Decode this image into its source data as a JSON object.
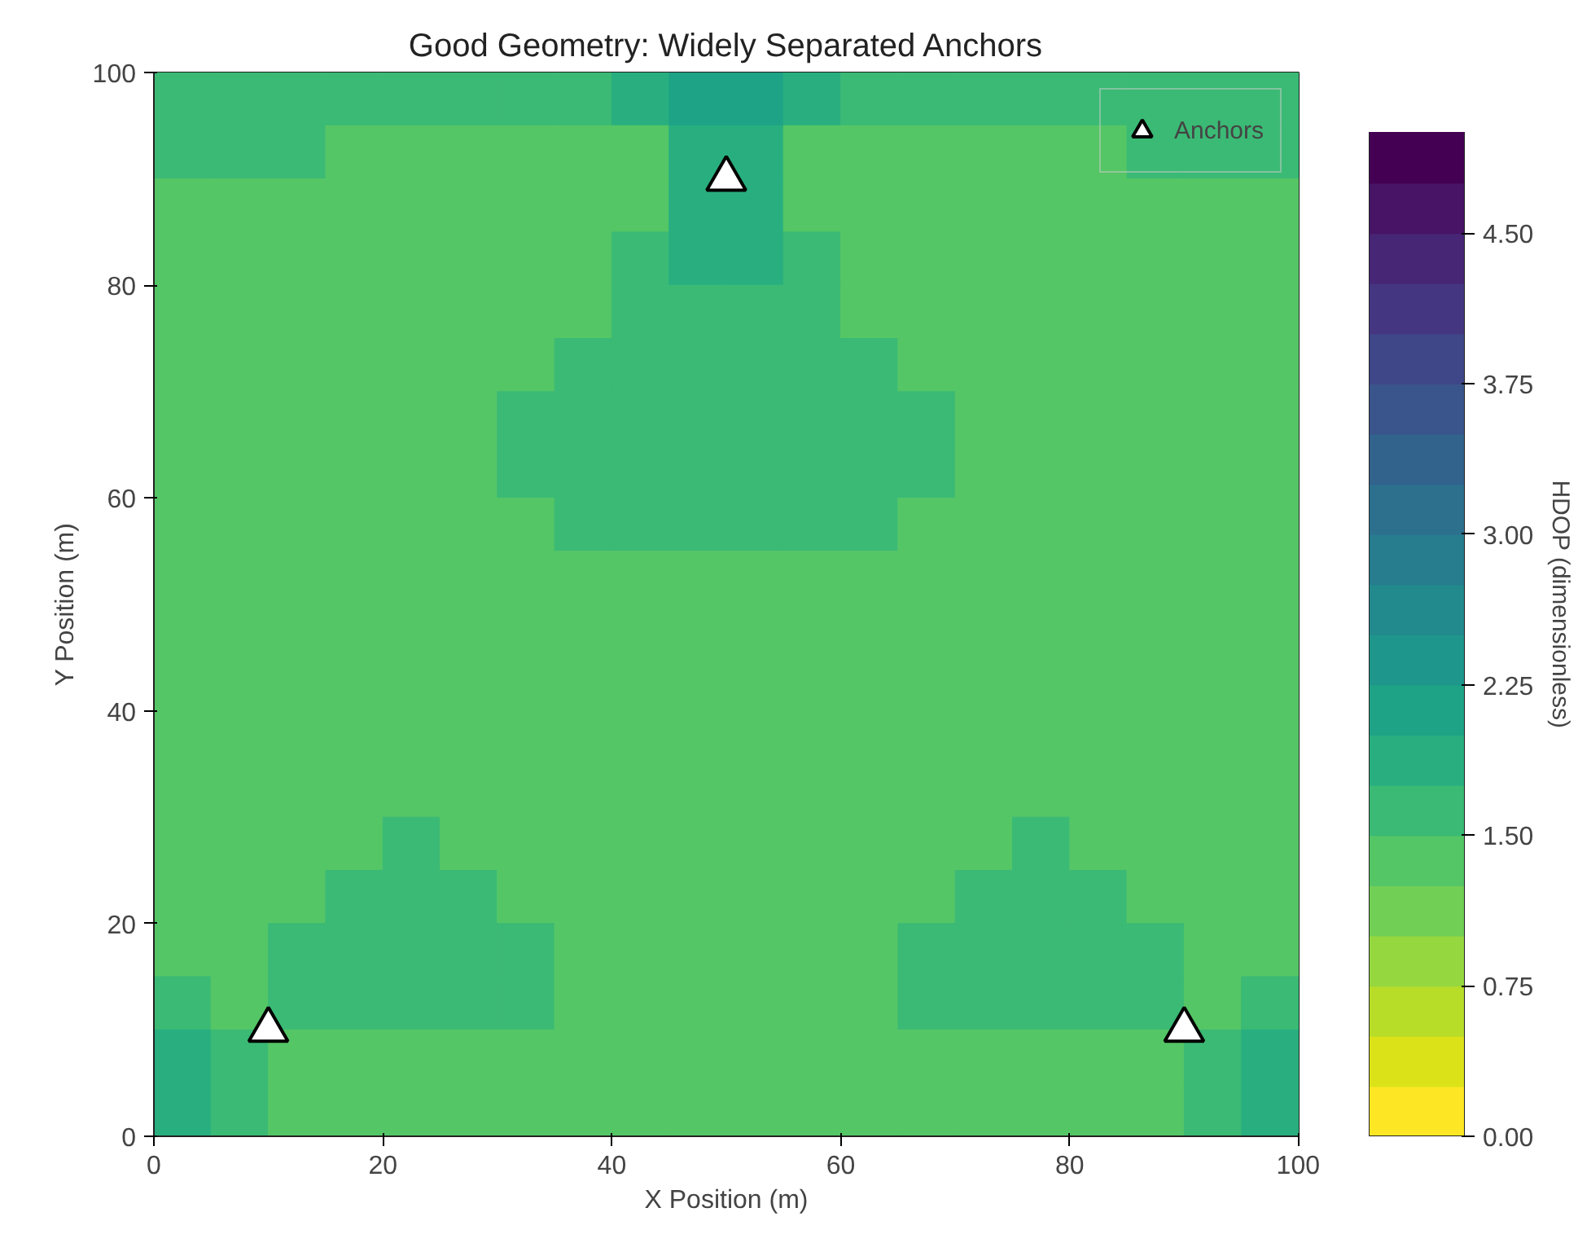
{
  "chart_data": {
    "type": "heatmap",
    "title": "Good Geometry: Widely Separated Anchors",
    "xlabel": "X Position (m)",
    "ylabel": "Y Position (m)",
    "clabel": "HDOP (dimensionless)",
    "xlim": [
      0,
      100
    ],
    "ylim": [
      0,
      100
    ],
    "xticks": [
      0,
      20,
      40,
      60,
      80,
      100
    ],
    "yticks": [
      0,
      20,
      40,
      60,
      80,
      100
    ],
    "clim": [
      0,
      5
    ],
    "cticks": [
      {
        "value": 0,
        "label": "0.00"
      },
      {
        "value": 0.75,
        "label": "0.75"
      },
      {
        "value": 1.5,
        "label": "1.50"
      },
      {
        "value": 2.25,
        "label": "2.25"
      },
      {
        "value": 3,
        "label": "3.00"
      },
      {
        "value": 3.75,
        "label": "3.75"
      },
      {
        "value": 4.5,
        "label": "4.50"
      }
    ],
    "legend": "top right",
    "cells": [
      [
        1.6,
        1.6,
        1.6,
        1.6,
        1.6,
        1.6,
        1.6,
        1.6,
        1.9,
        2.1,
        2.1,
        1.9,
        1.6,
        1.6,
        1.6,
        1.6,
        1.6,
        1.6,
        1.6,
        1.6
      ],
      [
        1.6,
        1.6,
        1.6,
        1.4,
        1.4,
        1.4,
        1.4,
        1.4,
        1.4,
        1.9,
        1.9,
        1.4,
        1.4,
        1.4,
        1.4,
        1.4,
        1.4,
        1.6,
        1.6,
        1.6
      ],
      [
        1.4,
        1.4,
        1.4,
        1.4,
        1.4,
        1.4,
        1.4,
        1.4,
        1.4,
        1.9,
        1.9,
        1.4,
        1.4,
        1.4,
        1.4,
        1.4,
        1.4,
        1.4,
        1.4,
        1.4
      ],
      [
        1.4,
        1.4,
        1.4,
        1.4,
        1.4,
        1.4,
        1.4,
        1.4,
        1.6,
        1.9,
        1.9,
        1.6,
        1.4,
        1.4,
        1.4,
        1.4,
        1.4,
        1.4,
        1.4,
        1.4
      ],
      [
        1.4,
        1.4,
        1.4,
        1.4,
        1.4,
        1.4,
        1.4,
        1.4,
        1.6,
        1.6,
        1.6,
        1.6,
        1.4,
        1.4,
        1.4,
        1.4,
        1.4,
        1.4,
        1.4,
        1.4
      ],
      [
        1.4,
        1.4,
        1.4,
        1.4,
        1.4,
        1.4,
        1.4,
        1.6,
        1.6,
        1.6,
        1.6,
        1.6,
        1.6,
        1.4,
        1.4,
        1.4,
        1.4,
        1.4,
        1.4,
        1.4
      ],
      [
        1.4,
        1.4,
        1.4,
        1.4,
        1.4,
        1.4,
        1.6,
        1.6,
        1.6,
        1.6,
        1.6,
        1.6,
        1.6,
        1.6,
        1.4,
        1.4,
        1.4,
        1.4,
        1.4,
        1.4
      ],
      [
        1.4,
        1.4,
        1.4,
        1.4,
        1.4,
        1.4,
        1.6,
        1.6,
        1.6,
        1.6,
        1.6,
        1.6,
        1.6,
        1.6,
        1.4,
        1.4,
        1.4,
        1.4,
        1.4,
        1.4
      ],
      [
        1.4,
        1.4,
        1.4,
        1.4,
        1.4,
        1.4,
        1.4,
        1.6,
        1.6,
        1.6,
        1.6,
        1.6,
        1.6,
        1.4,
        1.4,
        1.4,
        1.4,
        1.4,
        1.4,
        1.4
      ],
      [
        1.4,
        1.4,
        1.4,
        1.4,
        1.4,
        1.4,
        1.4,
        1.4,
        1.4,
        1.4,
        1.4,
        1.4,
        1.4,
        1.4,
        1.4,
        1.4,
        1.4,
        1.4,
        1.4,
        1.4
      ],
      [
        1.4,
        1.4,
        1.4,
        1.4,
        1.4,
        1.4,
        1.4,
        1.4,
        1.4,
        1.4,
        1.4,
        1.4,
        1.4,
        1.4,
        1.4,
        1.4,
        1.4,
        1.4,
        1.4,
        1.4
      ],
      [
        1.4,
        1.4,
        1.4,
        1.4,
        1.4,
        1.4,
        1.4,
        1.4,
        1.4,
        1.4,
        1.4,
        1.4,
        1.4,
        1.4,
        1.4,
        1.4,
        1.4,
        1.4,
        1.4,
        1.4
      ],
      [
        1.4,
        1.4,
        1.4,
        1.4,
        1.4,
        1.4,
        1.4,
        1.4,
        1.4,
        1.4,
        1.4,
        1.4,
        1.4,
        1.4,
        1.4,
        1.4,
        1.4,
        1.4,
        1.4,
        1.4
      ],
      [
        1.4,
        1.4,
        1.4,
        1.4,
        1.4,
        1.4,
        1.4,
        1.4,
        1.4,
        1.4,
        1.4,
        1.4,
        1.4,
        1.4,
        1.4,
        1.4,
        1.4,
        1.4,
        1.4,
        1.4
      ],
      [
        1.4,
        1.4,
        1.4,
        1.4,
        1.6,
        1.4,
        1.4,
        1.4,
        1.4,
        1.4,
        1.4,
        1.4,
        1.4,
        1.4,
        1.4,
        1.6,
        1.4,
        1.4,
        1.4,
        1.4
      ],
      [
        1.4,
        1.4,
        1.4,
        1.6,
        1.6,
        1.6,
        1.4,
        1.4,
        1.4,
        1.4,
        1.4,
        1.4,
        1.4,
        1.4,
        1.6,
        1.6,
        1.6,
        1.4,
        1.4,
        1.4
      ],
      [
        1.4,
        1.4,
        1.6,
        1.6,
        1.6,
        1.6,
        1.6,
        1.4,
        1.4,
        1.4,
        1.4,
        1.4,
        1.4,
        1.6,
        1.6,
        1.6,
        1.6,
        1.6,
        1.4,
        1.4
      ],
      [
        1.6,
        1.4,
        1.6,
        1.6,
        1.6,
        1.6,
        1.6,
        1.4,
        1.4,
        1.4,
        1.4,
        1.4,
        1.4,
        1.6,
        1.6,
        1.6,
        1.6,
        1.6,
        1.4,
        1.6
      ],
      [
        1.9,
        1.6,
        1.4,
        1.4,
        1.4,
        1.4,
        1.4,
        1.4,
        1.4,
        1.4,
        1.4,
        1.4,
        1.4,
        1.4,
        1.4,
        1.4,
        1.4,
        1.4,
        1.6,
        1.9
      ],
      [
        1.9,
        1.6,
        1.4,
        1.4,
        1.4,
        1.4,
        1.4,
        1.4,
        1.4,
        1.4,
        1.4,
        1.4,
        1.4,
        1.4,
        1.4,
        1.4,
        1.4,
        1.4,
        1.6,
        1.9
      ]
    ],
    "series": [
      {
        "type": "scatter",
        "name": "Anchors",
        "color": "#ffffff",
        "marker": "triangle",
        "x": [
          10,
          50,
          90
        ],
        "values": [
          10,
          90,
          10
        ]
      }
    ]
  }
}
